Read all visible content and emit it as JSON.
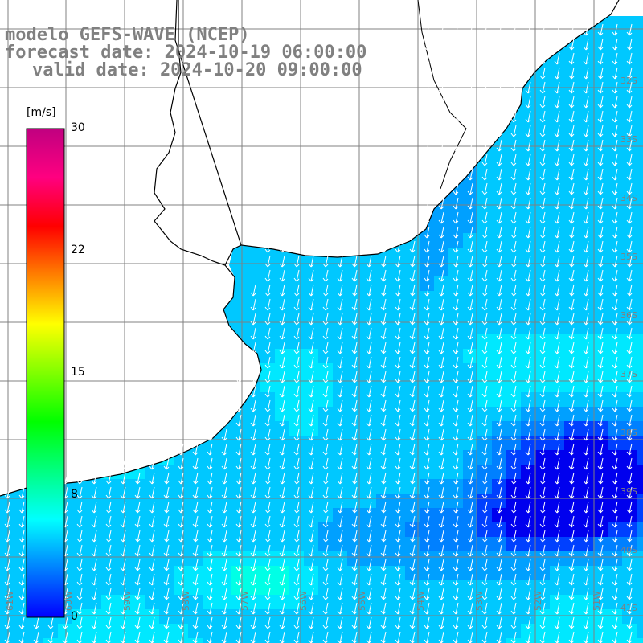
{
  "title": {
    "line1": "modelo GEFS-WAVE (NCEP)",
    "line2": "forecast date: 2024-10-19 06:00:00",
    "line3": "valid date: 2024-10-20 09:00:00"
  },
  "colorbar": {
    "unit": "[m/s]",
    "ticks": [
      {
        "label": "30",
        "value": 30
      },
      {
        "label": "22",
        "value": 22
      },
      {
        "label": "15",
        "value": 15
      },
      {
        "label": "8",
        "value": 8
      },
      {
        "label": "0",
        "value": 0
      }
    ],
    "colors": [
      "#0000ff",
      "#0080ff",
      "#00ffff",
      "#00ff80",
      "#00ff00",
      "#80ff00",
      "#ffff00",
      "#ff8000",
      "#ff0000",
      "#ff0080",
      "#c00080"
    ]
  },
  "map": {
    "land_color": "#ffffff",
    "grid_color": "#808080",
    "coast_color": "#000000",
    "arrow_color": "#ffffff",
    "lat_labels": [
      "32S",
      "33S",
      "34S",
      "35S",
      "36S",
      "37S",
      "38S",
      "39S",
      "40S",
      "41S"
    ],
    "lon_labels": [
      "61W",
      "60W",
      "59W",
      "58W",
      "57W",
      "56W",
      "55W",
      "54W",
      "53W",
      "52W",
      "51W"
    ]
  }
}
